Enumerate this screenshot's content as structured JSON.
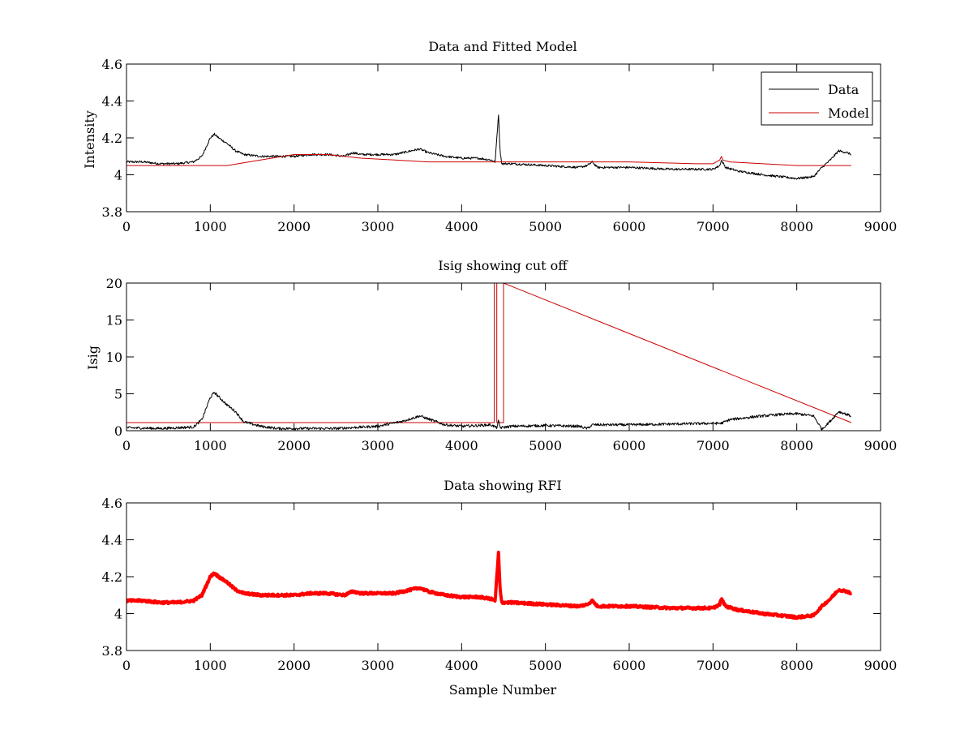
{
  "figure": {
    "background": "#ffffff"
  },
  "chart_data": [
    {
      "type": "line",
      "title": "Data and Fitted Model",
      "xlabel": "",
      "ylabel": "Intensity",
      "xlim": [
        0,
        9000
      ],
      "ylim": [
        3.8,
        4.6
      ],
      "xticks": [
        0,
        1000,
        2000,
        3000,
        4000,
        5000,
        6000,
        7000,
        8000,
        9000
      ],
      "yticks": [
        3.8,
        4,
        4.2,
        4.4,
        4.6
      ],
      "xtick_labels": [
        "0",
        "1000",
        "2000",
        "3000",
        "4000",
        "5000",
        "6000",
        "7000",
        "8000",
        "9000"
      ],
      "ytick_labels": [
        "3.8",
        "4",
        "4.2",
        "4.4",
        "4.6"
      ],
      "legend": {
        "position": "top-right",
        "entries": [
          "Data",
          "Model"
        ]
      },
      "series": [
        {
          "name": "Data",
          "color": "#000000",
          "style": "noisy-line",
          "x": [
            0,
            200,
            400,
            600,
            800,
            900,
            1000,
            1050,
            1100,
            1200,
            1300,
            1400,
            1600,
            1800,
            2000,
            2200,
            2400,
            2600,
            2700,
            2800,
            3000,
            3200,
            3400,
            3500,
            3600,
            3800,
            4000,
            4200,
            4350,
            4400,
            4420,
            4440,
            4460,
            4480,
            4600,
            5000,
            5400,
            5500,
            5560,
            5620,
            6000,
            6500,
            7000,
            7080,
            7100,
            7150,
            7300,
            7600,
            7800,
            8000,
            8200,
            8300,
            8400,
            8500,
            8600,
            8650
          ],
          "y": [
            4.07,
            4.07,
            4.06,
            4.06,
            4.07,
            4.1,
            4.2,
            4.22,
            4.2,
            4.17,
            4.13,
            4.11,
            4.1,
            4.1,
            4.1,
            4.11,
            4.11,
            4.1,
            4.12,
            4.11,
            4.11,
            4.11,
            4.13,
            4.14,
            4.12,
            4.1,
            4.09,
            4.09,
            4.08,
            4.07,
            4.2,
            4.33,
            4.12,
            4.06,
            4.06,
            4.05,
            4.04,
            4.05,
            4.07,
            4.04,
            4.04,
            4.03,
            4.03,
            4.05,
            4.08,
            4.04,
            4.02,
            4.0,
            3.99,
            3.98,
            3.99,
            4.04,
            4.08,
            4.13,
            4.12,
            4.11
          ]
        },
        {
          "name": "Model",
          "color": "#cc0000",
          "style": "smooth-line",
          "x": [
            0,
            500,
            1000,
            1200,
            1600,
            2000,
            2400,
            2800,
            3200,
            3600,
            4000,
            4400,
            5000,
            6000,
            6800,
            7000,
            7080,
            7100,
            7120,
            7200,
            7600,
            8000,
            8400,
            8650
          ],
          "y": [
            4.05,
            4.05,
            4.05,
            4.05,
            4.08,
            4.11,
            4.11,
            4.09,
            4.08,
            4.07,
            4.07,
            4.07,
            4.07,
            4.07,
            4.06,
            4.06,
            4.08,
            4.1,
            4.08,
            4.07,
            4.06,
            4.05,
            4.05,
            4.05
          ]
        }
      ]
    },
    {
      "type": "line",
      "title": "Isig showing cut off",
      "xlabel": "",
      "ylabel": "Isig",
      "xlim": [
        0,
        9000
      ],
      "ylim": [
        0,
        20
      ],
      "xticks": [
        0,
        1000,
        2000,
        3000,
        4000,
        5000,
        6000,
        7000,
        8000,
        9000
      ],
      "yticks": [
        0,
        5,
        10,
        15,
        20
      ],
      "xtick_labels": [
        "0",
        "1000",
        "2000",
        "3000",
        "4000",
        "5000",
        "6000",
        "7000",
        "8000",
        "9000"
      ],
      "ytick_labels": [
        "0",
        "5",
        "10",
        "15",
        "20"
      ],
      "series": [
        {
          "color": "#cc0000",
          "style": "step-line",
          "x": [
            0,
            4390,
            4390,
            4420,
            4420,
            4500,
            4500,
            8650
          ],
          "y": [
            1.1,
            1.1,
            20,
            20,
            1.1,
            1.1,
            20,
            1.1
          ]
        },
        {
          "color": "#000000",
          "style": "noisy-line",
          "x": [
            0,
            400,
            800,
            900,
            1000,
            1050,
            1100,
            1200,
            1300,
            1400,
            1600,
            1800,
            2000,
            2500,
            3000,
            3300,
            3500,
            3600,
            3800,
            4000,
            4200,
            4350,
            4420,
            4440,
            4460,
            4600,
            5000,
            5400,
            5500,
            5560,
            6000,
            6500,
            7000,
            7100,
            7200,
            7500,
            7800,
            8000,
            8200,
            8300,
            8400,
            8500,
            8650
          ],
          "y": [
            0.4,
            0.3,
            0.5,
            1.5,
            4.5,
            5.2,
            4.6,
            3.5,
            2.6,
            1.2,
            0.6,
            0.3,
            0.3,
            0.3,
            0.6,
            1.3,
            2.0,
            1.6,
            0.8,
            0.6,
            0.7,
            0.8,
            0.4,
            1.3,
            0.4,
            0.6,
            0.7,
            0.6,
            0.3,
            0.8,
            0.8,
            0.9,
            1.0,
            1.0,
            1.5,
            1.9,
            2.2,
            2.3,
            2.0,
            0.2,
            1.3,
            2.6,
            2.0
          ]
        }
      ]
    },
    {
      "type": "line",
      "title": "Data showing RFI",
      "xlabel": "Sample Number",
      "ylabel": "",
      "xlim": [
        0,
        9000
      ],
      "ylim": [
        3.8,
        4.6
      ],
      "xticks": [
        0,
        1000,
        2000,
        3000,
        4000,
        5000,
        6000,
        7000,
        8000,
        9000
      ],
      "yticks": [
        3.8,
        4,
        4.2,
        4.4,
        4.6
      ],
      "xtick_labels": [
        "0",
        "1000",
        "2000",
        "3000",
        "4000",
        "5000",
        "6000",
        "7000",
        "8000",
        "9000"
      ],
      "ytick_labels": [
        "3.8",
        "4",
        "4.2",
        "4.4",
        "4.6"
      ],
      "series": [
        {
          "color": "#ff0000",
          "style": "thick-noisy-line",
          "x": [
            0,
            200,
            400,
            600,
            800,
            900,
            1000,
            1050,
            1100,
            1200,
            1300,
            1400,
            1600,
            1800,
            2000,
            2200,
            2400,
            2600,
            2700,
            2800,
            3000,
            3200,
            3400,
            3500,
            3600,
            3800,
            4000,
            4200,
            4350,
            4400,
            4420,
            4440,
            4460,
            4480,
            4600,
            5000,
            5400,
            5500,
            5560,
            5620,
            6000,
            6500,
            7000,
            7080,
            7100,
            7150,
            7300,
            7600,
            7800,
            8000,
            8200,
            8300,
            8400,
            8500,
            8600,
            8650
          ],
          "y": [
            4.07,
            4.07,
            4.06,
            4.06,
            4.07,
            4.1,
            4.2,
            4.22,
            4.2,
            4.17,
            4.13,
            4.11,
            4.1,
            4.1,
            4.1,
            4.11,
            4.11,
            4.1,
            4.12,
            4.11,
            4.11,
            4.11,
            4.13,
            4.14,
            4.12,
            4.1,
            4.09,
            4.09,
            4.08,
            4.07,
            4.2,
            4.33,
            4.12,
            4.06,
            4.06,
            4.05,
            4.04,
            4.05,
            4.07,
            4.04,
            4.04,
            4.03,
            4.03,
            4.05,
            4.08,
            4.04,
            4.02,
            4.0,
            3.99,
            3.98,
            3.99,
            4.04,
            4.08,
            4.13,
            4.12,
            4.11
          ]
        }
      ]
    }
  ]
}
